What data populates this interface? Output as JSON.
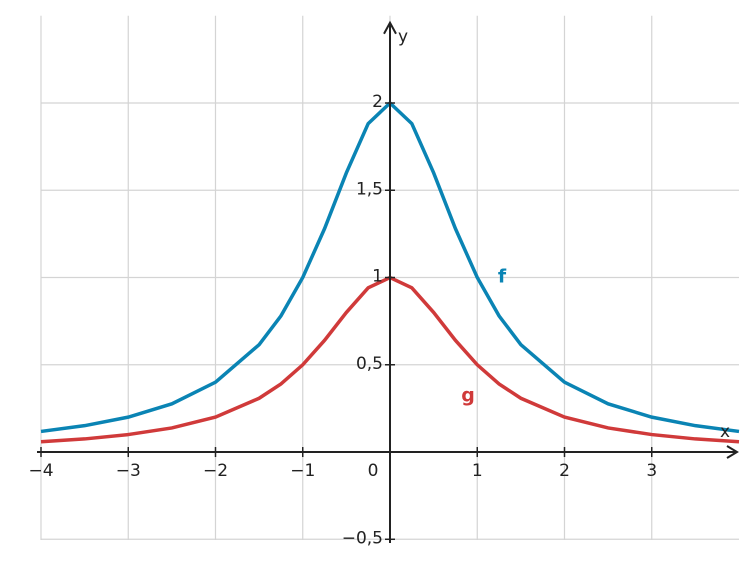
{
  "chart_data": {
    "type": "line",
    "x": [
      -4,
      -3.5,
      -3,
      -2.5,
      -2,
      -1.5,
      -1.25,
      -1,
      -0.75,
      -0.5,
      -0.25,
      0,
      0.25,
      0.5,
      0.75,
      1,
      1.25,
      1.5,
      2,
      2.5,
      3,
      3.5,
      4
    ],
    "series": [
      {
        "name": "f",
        "color": "#0a84b4",
        "values": [
          0.118,
          0.151,
          0.2,
          0.276,
          0.4,
          0.615,
          0.78,
          1,
          1.28,
          1.6,
          1.882,
          2,
          1.882,
          1.6,
          1.28,
          1,
          0.78,
          0.615,
          0.4,
          0.276,
          0.2,
          0.151,
          0.118
        ]
      },
      {
        "name": "g",
        "color": "#d03a3a",
        "values": [
          0.059,
          0.075,
          0.1,
          0.138,
          0.2,
          0.308,
          0.39,
          0.5,
          0.64,
          0.8,
          0.941,
          1,
          0.941,
          0.8,
          0.64,
          0.5,
          0.39,
          0.308,
          0.2,
          0.138,
          0.1,
          0.075,
          0.059
        ]
      }
    ],
    "xlabel": "x",
    "ylabel": "y",
    "xlim": [
      -4,
      4
    ],
    "ylim": [
      -0.55,
      2.5
    ],
    "xticks": [
      {
        "value": -4,
        "label": "−4"
      },
      {
        "value": -3,
        "label": "−3"
      },
      {
        "value": -2,
        "label": "−2"
      },
      {
        "value": -1,
        "label": "−1"
      },
      0,
      1,
      2,
      3
    ],
    "yticks": [
      {
        "value": -0.5,
        "label": "−0,5"
      },
      {
        "value": 0.5,
        "label": "0,5"
      },
      1,
      {
        "value": 1.5,
        "label": "1,5"
      },
      2
    ],
    "grid": true
  }
}
